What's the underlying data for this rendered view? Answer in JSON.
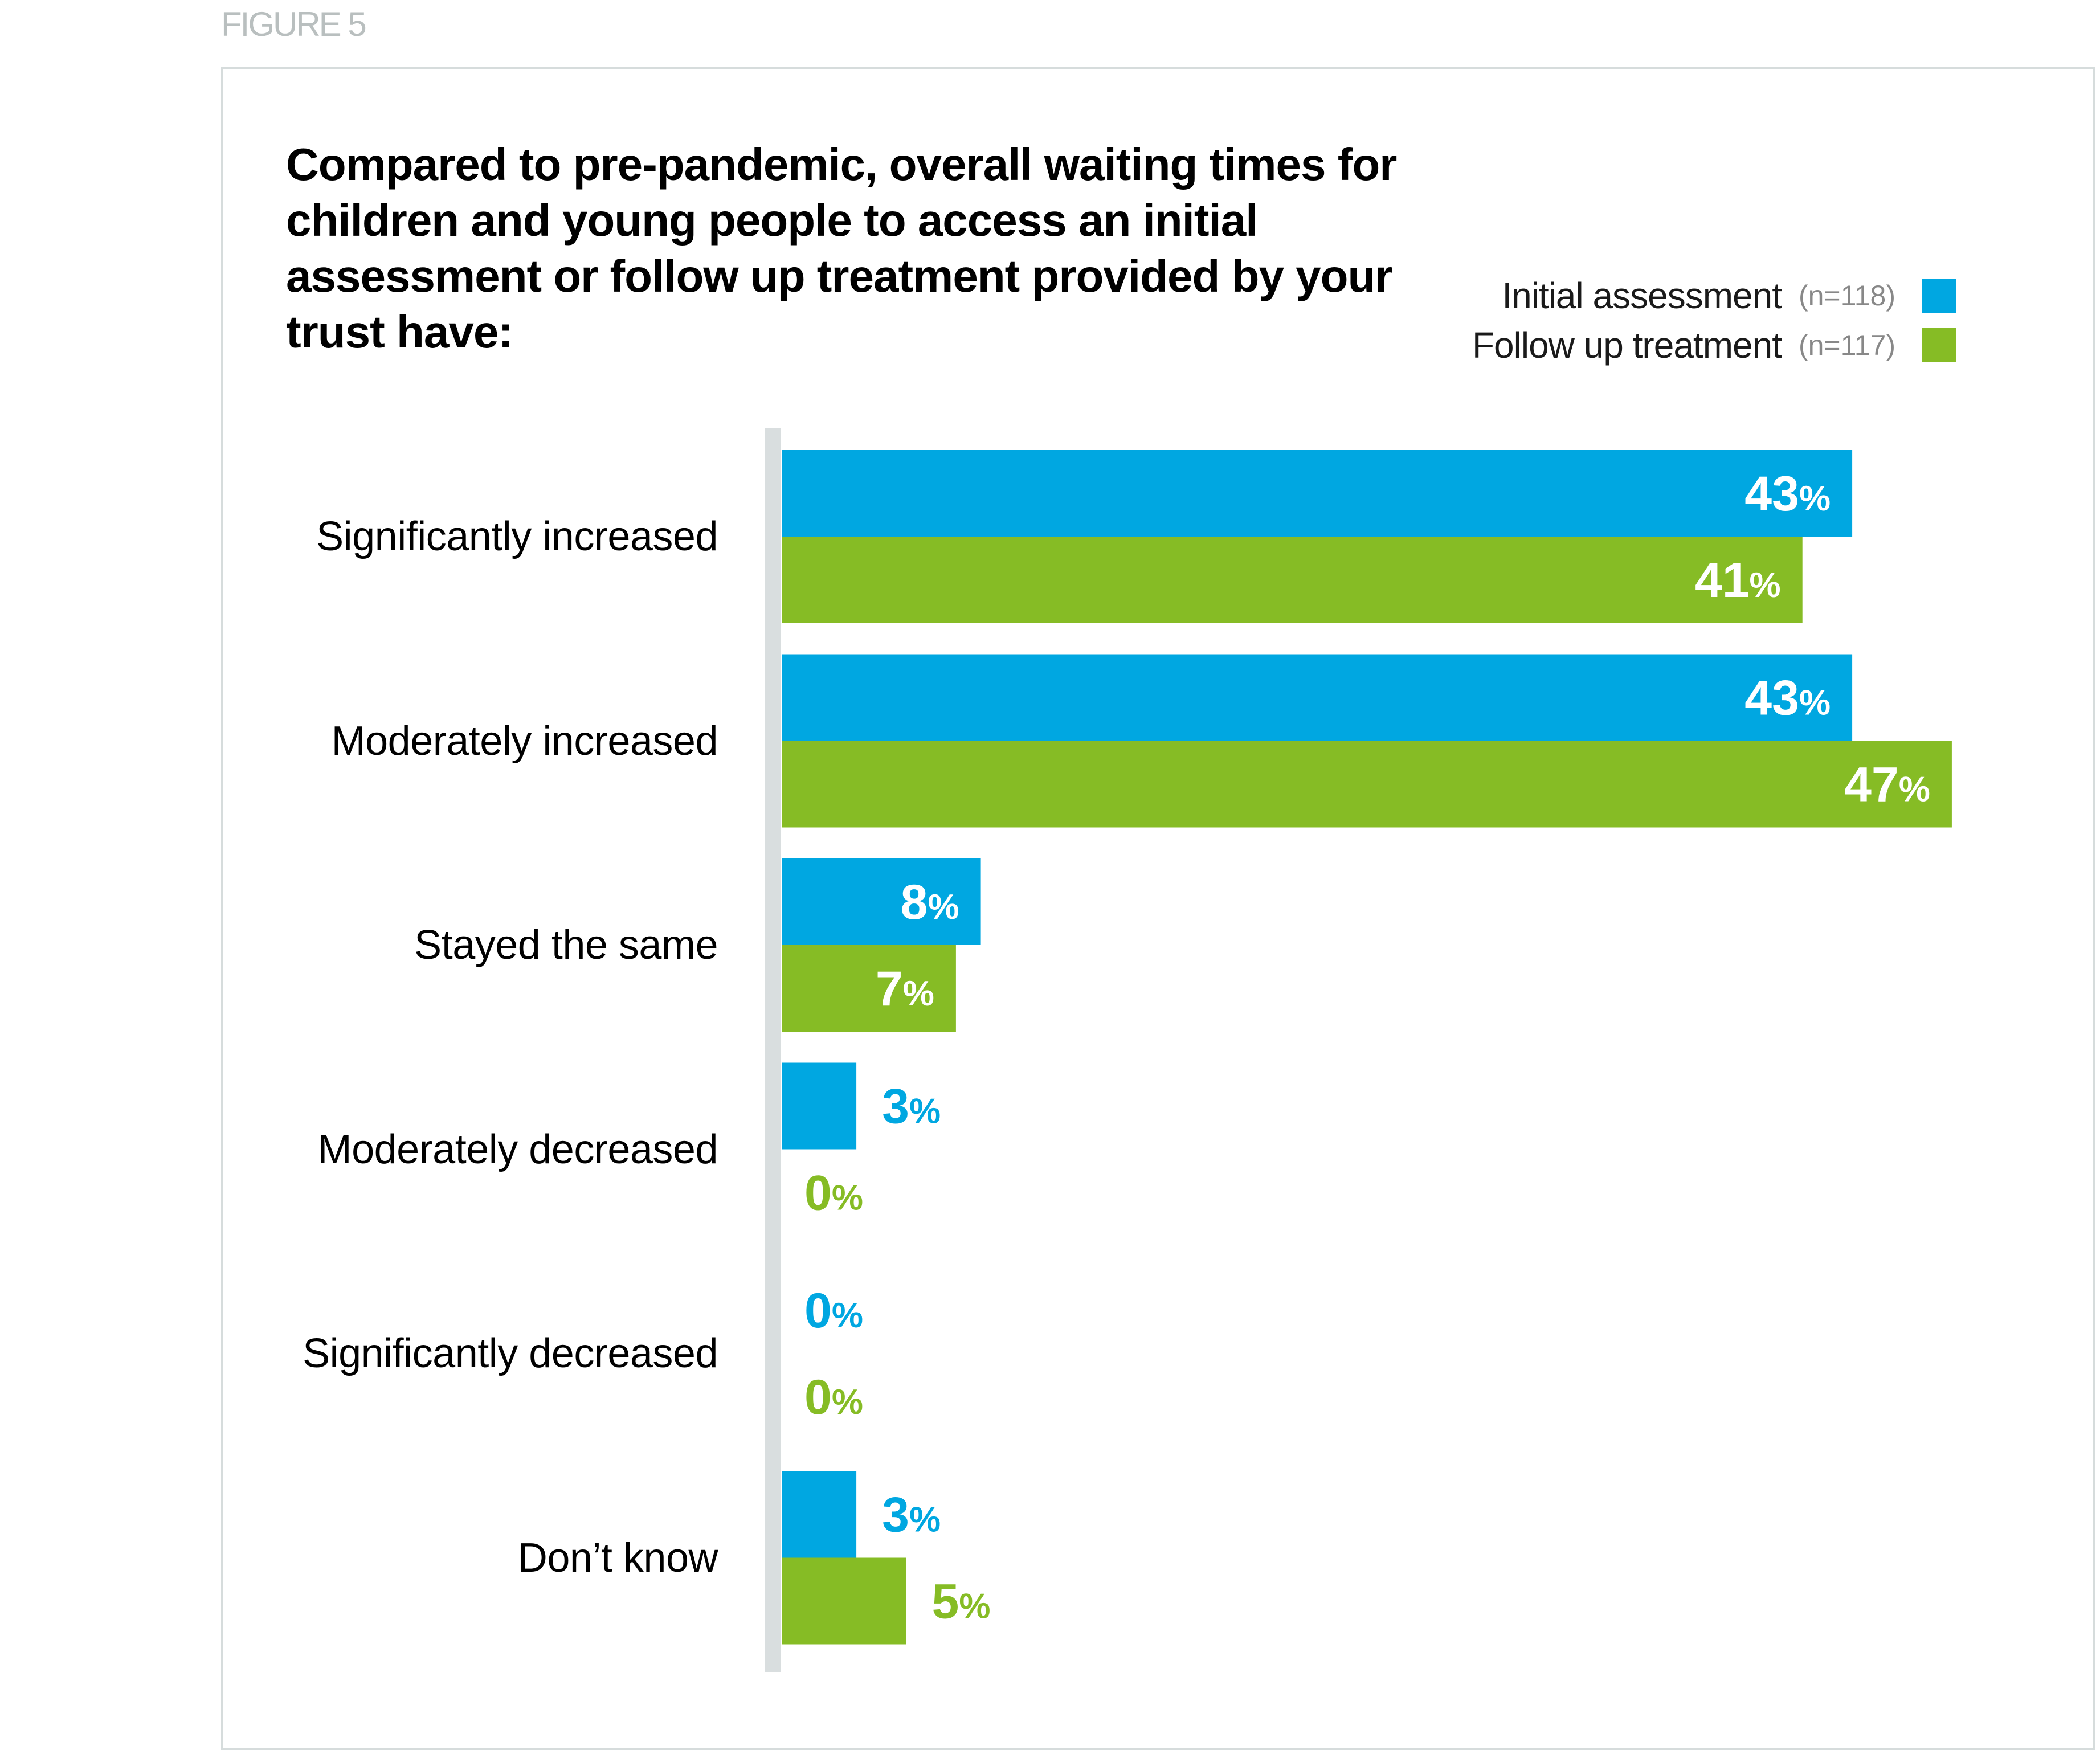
{
  "figure_label": "FIGURE 5",
  "chart_data": {
    "type": "bar",
    "orientation": "horizontal",
    "title": "Compared to pre-pandemic, overall waiting times for children and young people to access an initial assessment or follow up treatment provided by your trust have:",
    "categories": [
      "Significantly increased",
      "Moderately increased",
      "Stayed the same",
      "Moderately decreased",
      "Significantly decreased",
      "Don’t know"
    ],
    "series": [
      {
        "name": "Initial assessment",
        "n_label": "(n=118)",
        "color": "#00a7e1",
        "values": [
          43,
          43,
          8,
          3,
          0,
          3
        ]
      },
      {
        "name": "Follow up treatment",
        "n_label": "(n=117)",
        "color": "#86bc25",
        "values": [
          41,
          47,
          7,
          0,
          0,
          5
        ]
      }
    ],
    "value_suffix": "%",
    "xlabel": "",
    "ylabel": "",
    "xlim": [
      0,
      50
    ],
    "grid": false,
    "legend_position": "top-right",
    "axis_color": "#d9dedf"
  }
}
